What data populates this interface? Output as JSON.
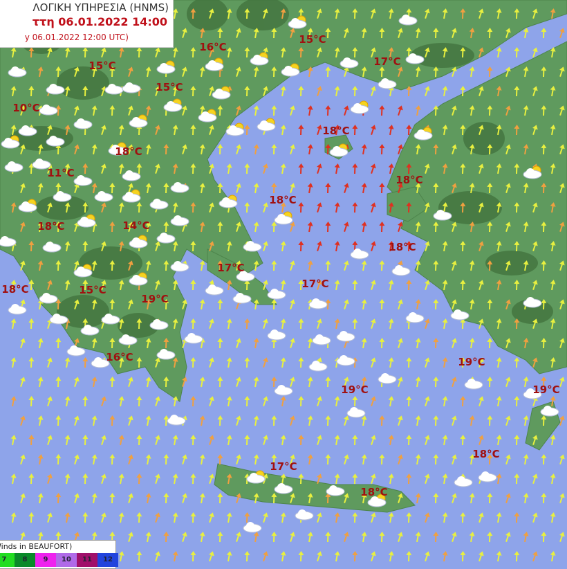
{
  "header": {
    "agency": "ΛΟΓΙΚΗ ΥΠΗΡΕΣΙΑ (HNMS)",
    "forecast_time": "ττη 06.01.2022 14:00",
    "run_time": "y 06.01.2022 12:00 UTC)"
  },
  "legend": {
    "title": "Winds in BEAUFORT)",
    "levels": [
      {
        "label": "7",
        "color": "#22dd22"
      },
      {
        "label": "8",
        "color": "#0a8a2a"
      },
      {
        "label": "9",
        "color": "#ee22ee"
      },
      {
        "label": "10",
        "color": "#b06ae8"
      },
      {
        "label": "11",
        "color": "#a0106a"
      },
      {
        "label": "12",
        "color": "#2244dd"
      }
    ]
  },
  "colors": {
    "sea": "#8ea4ea",
    "land": "#5f9a5e",
    "mountain": "#3f6e3a",
    "temp_text": "#a01010",
    "wind_yellow": "#e8f040",
    "wind_orange": "#f0a040",
    "wind_red": "#e03020"
  },
  "temperatures": [
    {
      "label": "16°C",
      "icon": "none"
    },
    {
      "label": "15°C"
    },
    {
      "label": "17°C"
    },
    {
      "label": "15°C"
    },
    {
      "label": "15°C"
    },
    {
      "label": "10°C"
    },
    {
      "label": "18°C"
    },
    {
      "label": "18°C"
    },
    {
      "label": "11°C"
    },
    {
      "label": "18°C"
    },
    {
      "label": "18°C"
    },
    {
      "label": "18°C"
    },
    {
      "label": "14°C"
    },
    {
      "label": "18°C"
    },
    {
      "label": "17°C"
    },
    {
      "label": "17°C"
    },
    {
      "label": "18°C"
    },
    {
      "label": "15°C"
    },
    {
      "label": "19°C"
    },
    {
      "label": "16°C"
    },
    {
      "label": "19°C"
    },
    {
      "label": "19°C"
    },
    {
      "label": "19°C"
    },
    {
      "label": "18°C"
    },
    {
      "label": "17°C"
    },
    {
      "label": "18°C"
    }
  ],
  "weather_icons": [
    "cloud-icon",
    "sun-cloud-icon"
  ],
  "wind_direction": "south to north"
}
